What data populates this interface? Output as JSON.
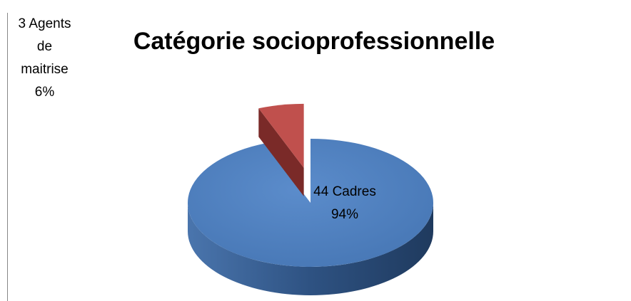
{
  "chart_data": {
    "type": "pie3d",
    "title": "Catégorie socioprofessionnelle",
    "categories": [
      "Cadres",
      "Agents de maitrise"
    ],
    "counts": [
      44,
      3
    ],
    "values": [
      94,
      6
    ],
    "value_labels": [
      "94%",
      "6%"
    ],
    "colors": [
      "#4f81bd",
      "#c0504d"
    ],
    "side_colors": [
      "#2b4a73",
      "#7a2a28"
    ]
  }
}
